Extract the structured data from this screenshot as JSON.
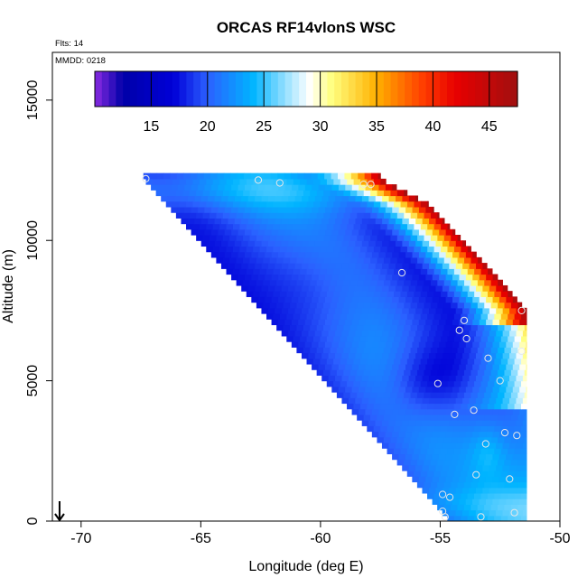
{
  "chart_data": {
    "type": "heatmap",
    "title": "ORCAS RF14vlonS WSC",
    "annotations": {
      "flights": "Flts: 14",
      "date": "MMDD: 0218"
    },
    "xlabel": "Longitude (deg E)",
    "ylabel": "Altitude (m)",
    "xlim": [
      -71.2,
      -50
    ],
    "ylim": [
      0,
      16700
    ],
    "x_ticks": [
      -70,
      -65,
      -60,
      -55,
      -50
    ],
    "x_tick_labels": [
      "-70",
      "-65",
      "-60",
      "-55",
      "-50"
    ],
    "y_ticks": [
      0,
      5000,
      10000,
      15000
    ],
    "y_tick_labels": [
      "0",
      "5000",
      "10000",
      "15000"
    ],
    "colorbar": {
      "range": [
        10,
        47.5
      ],
      "ticks": [
        15,
        20,
        25,
        30,
        35,
        40,
        45
      ],
      "tick_labels": [
        "15",
        "20",
        "25",
        "30",
        "35",
        "40",
        "45"
      ],
      "colors": [
        "#8a2be2",
        "#0000a8",
        "#0000d8",
        "#2b60ff",
        "#00b4ff",
        "#ffffff",
        "#ffff80",
        "#ffb000",
        "#ff4000",
        "#e80000",
        "#a01010"
      ],
      "color_stops": [
        10,
        12.5,
        17,
        20,
        24,
        29,
        31,
        35,
        39,
        42,
        47.5
      ]
    },
    "field_extent": {
      "lon_range": [
        -67.4,
        -51.4
      ],
      "alt_range": [
        0,
        12300
      ],
      "lower_left_edge": [
        [
          -67.4,
          12200
        ],
        [
          -54.6,
          0
        ]
      ],
      "upper_right_edge": [
        [
          -57.5,
          12200
        ],
        [
          -55.5,
          11300
        ],
        [
          -53.5,
          9500
        ],
        [
          -52.5,
          8600
        ],
        [
          -51.4,
          7500
        ],
        [
          -51.4,
          0
        ]
      ]
    },
    "sample_points": [
      [
        -67.3,
        12200
      ],
      [
        -62.6,
        12150
      ],
      [
        -61.7,
        12050
      ],
      [
        -58.2,
        12000
      ],
      [
        -57.9,
        12000
      ],
      [
        -56.6,
        8850
      ],
      [
        -54.0,
        7150
      ],
      [
        -54.2,
        6800
      ],
      [
        -53.9,
        6500
      ],
      [
        -51.6,
        7500
      ],
      [
        -51.6,
        6050
      ],
      [
        -53.0,
        5800
      ],
      [
        -55.1,
        4900
      ],
      [
        -52.5,
        5000
      ],
      [
        -53.6,
        3950
      ],
      [
        -54.4,
        3800
      ],
      [
        -52.3,
        3150
      ],
      [
        -51.8,
        3050
      ],
      [
        -53.1,
        2750
      ],
      [
        -53.5,
        1650
      ],
      [
        -52.1,
        1500
      ],
      [
        -54.9,
        950
      ],
      [
        -54.6,
        850
      ],
      [
        -54.9,
        350
      ],
      [
        -54.8,
        150
      ],
      [
        -51.9,
        300
      ],
      [
        -53.3,
        150
      ]
    ],
    "flight_marker": {
      "lon": -70.9,
      "alt": 0,
      "direction": "down"
    }
  }
}
